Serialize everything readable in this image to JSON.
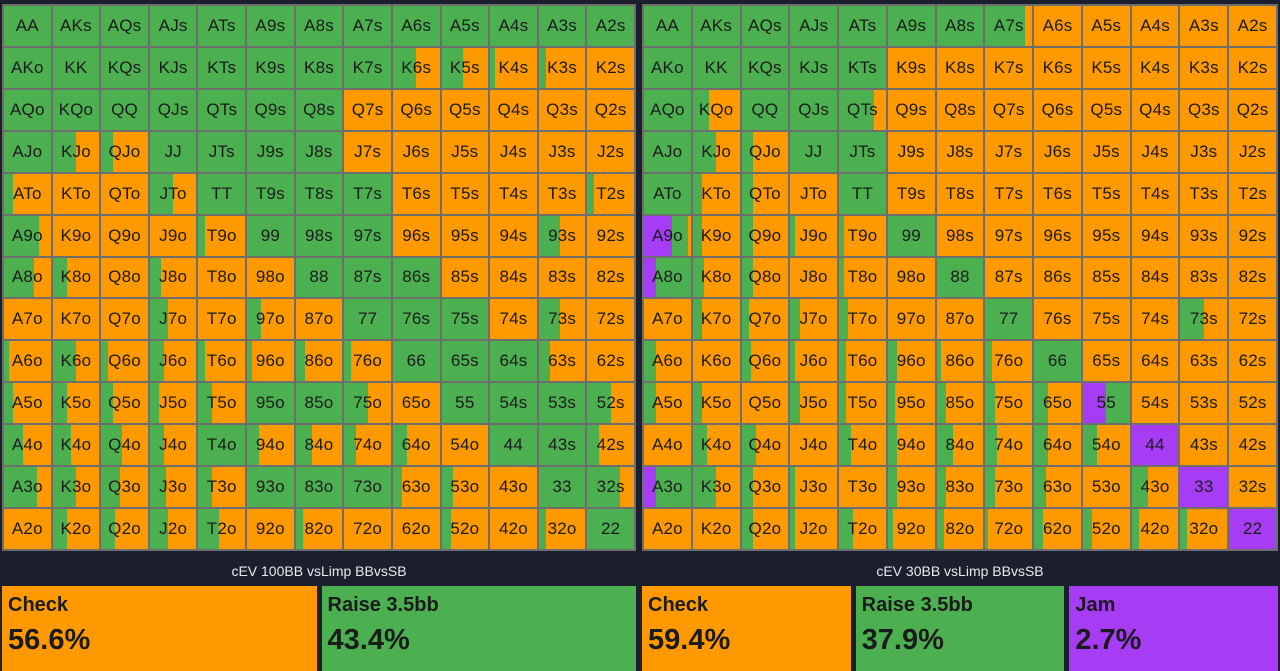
{
  "colors": {
    "check": "#ff9900",
    "raise": "#4caf50",
    "jam": "#a63cf4",
    "grid_line": "#6e6e6e",
    "background": "#1b1e2d"
  },
  "chart_data": [
    {
      "type": "heatmap",
      "title": "cEV 100BB vsLimp BBvsSB",
      "legend": [
        {
          "action": "Check",
          "label": "Check",
          "value": "56.6%",
          "color": "#ff9900"
        },
        {
          "action": "Raise",
          "label": "Raise 3.5bb",
          "value": "43.4%",
          "color": "#4caf50"
        }
      ],
      "action_order": [
        "raise",
        "check",
        "jam"
      ],
      "rows": [
        {
          "hands": [
            "AA",
            "AKs",
            "AQs",
            "AJs",
            "ATs",
            "A9s",
            "A8s",
            "A7s",
            "A6s",
            "A5s",
            "A4s",
            "A3s",
            "A2s"
          ],
          "raise": [
            1,
            1,
            1,
            1,
            1,
            1,
            1,
            1,
            1,
            1,
            1,
            1,
            1
          ]
        },
        {
          "hands": [
            "AKo",
            "KK",
            "KQs",
            "KJs",
            "KTs",
            "K9s",
            "K8s",
            "K7s",
            "K6s",
            "K5s",
            "K4s",
            "K3s",
            "K2s"
          ],
          "raise": [
            1,
            1,
            1,
            1,
            1,
            1,
            1,
            1,
            0.5,
            0.45,
            0.1,
            0.15,
            0
          ]
        },
        {
          "hands": [
            "AQo",
            "KQo",
            "QQ",
            "QJs",
            "QTs",
            "Q9s",
            "Q8s",
            "Q7s",
            "Q6s",
            "Q5s",
            "Q4s",
            "Q3s",
            "Q2s"
          ],
          "raise": [
            1,
            1,
            1,
            1,
            1,
            1,
            1,
            0,
            0,
            0,
            0,
            0,
            0
          ]
        },
        {
          "hands": [
            "AJo",
            "KJo",
            "QJo",
            "JJ",
            "JTs",
            "J9s",
            "J8s",
            "J7s",
            "J6s",
            "J5s",
            "J4s",
            "J3s",
            "J2s"
          ],
          "raise": [
            1,
            0.5,
            0.25,
            1,
            1,
            1,
            1,
            0,
            0,
            0,
            0,
            0,
            0
          ]
        },
        {
          "hands": [
            "ATo",
            "KTo",
            "QTo",
            "JTo",
            "TT",
            "T9s",
            "T8s",
            "T7s",
            "T6s",
            "T5s",
            "T4s",
            "T3s",
            "T2s"
          ],
          "raise": [
            0.2,
            0,
            0,
            0.5,
            1,
            1,
            1,
            1,
            0,
            0,
            0,
            0,
            0.15
          ]
        },
        {
          "hands": [
            "A9o",
            "K9o",
            "Q9o",
            "J9o",
            "T9o",
            "99",
            "98s",
            "97s",
            "96s",
            "95s",
            "94s",
            "93s",
            "92s"
          ],
          "raise": [
            0.75,
            0,
            0,
            0,
            0.15,
            1,
            1,
            1,
            0,
            0,
            0,
            0.45,
            0
          ]
        },
        {
          "hands": [
            "A8o",
            "K8o",
            "Q8o",
            "J8o",
            "T8o",
            "98o",
            "88",
            "87s",
            "86s",
            "85s",
            "84s",
            "83s",
            "82s"
          ],
          "raise": [
            0.65,
            0.3,
            0,
            0.25,
            0,
            0,
            1,
            1,
            1,
            0,
            0,
            0,
            0
          ]
        },
        {
          "hands": [
            "A7o",
            "K7o",
            "Q7o",
            "J7o",
            "T7o",
            "97o",
            "87o",
            "77",
            "76s",
            "75s",
            "74s",
            "73s",
            "72s"
          ],
          "raise": [
            0,
            0,
            0,
            0.4,
            0,
            0.3,
            0,
            1,
            1,
            1,
            0,
            0.45,
            0
          ]
        },
        {
          "hands": [
            "A6o",
            "K6o",
            "Q6o",
            "J6o",
            "T6o",
            "96o",
            "86o",
            "76o",
            "66",
            "65s",
            "64s",
            "63s",
            "62s"
          ],
          "raise": [
            0.1,
            0.5,
            0.15,
            0.3,
            0.15,
            0.1,
            0.2,
            0.15,
            1,
            1,
            1,
            0.25,
            0
          ]
        },
        {
          "hands": [
            "A5o",
            "K5o",
            "Q5o",
            "J5o",
            "T5o",
            "95o",
            "85o",
            "75o",
            "65o",
            "55",
            "54s",
            "53s",
            "52s"
          ],
          "raise": [
            0.2,
            0.3,
            0.25,
            0.2,
            0.3,
            1,
            1,
            0.5,
            0,
            1,
            1,
            1,
            0.5
          ]
        },
        {
          "hands": [
            "A4o",
            "K4o",
            "Q4o",
            "J4o",
            "T4o",
            "94o",
            "84o",
            "74o",
            "64o",
            "54o",
            "44",
            "43s",
            "42s"
          ],
          "raise": [
            0.4,
            0.4,
            0.45,
            0.3,
            1,
            0.25,
            0.35,
            0.25,
            0.3,
            0,
            1,
            1,
            0.25
          ]
        },
        {
          "hands": [
            "A3o",
            "K3o",
            "Q3o",
            "J3o",
            "T3o",
            "93o",
            "83o",
            "73o",
            "63o",
            "53o",
            "43o",
            "33",
            "32s"
          ],
          "raise": [
            0.7,
            0.5,
            0.4,
            0.35,
            0.3,
            1,
            1,
            1,
            0.2,
            0.25,
            0,
            1,
            0.7
          ]
        },
        {
          "hands": [
            "A2o",
            "K2o",
            "Q2o",
            "J2o",
            "T2o",
            "92o",
            "82o",
            "72o",
            "62o",
            "52o",
            "42o",
            "32o",
            "22"
          ],
          "raise": [
            0,
            0.3,
            0.3,
            0.4,
            0.45,
            0,
            0.15,
            0,
            0,
            0.2,
            0,
            0.15,
            1
          ]
        }
      ]
    },
    {
      "type": "heatmap",
      "title": "cEV 30BB vsLimp BBvsSB",
      "legend": [
        {
          "action": "Check",
          "label": "Check",
          "value": "59.4%",
          "color": "#ff9900"
        },
        {
          "action": "Raise",
          "label": "Raise 3.5bb",
          "value": "37.9%",
          "color": "#4caf50"
        },
        {
          "action": "Jam",
          "label": "Jam",
          "value": "2.7%",
          "color": "#a63cf4"
        }
      ],
      "action_order": [
        "jam",
        "raise",
        "check"
      ],
      "rows": [
        {
          "hands": [
            "AA",
            "AKs",
            "AQs",
            "AJs",
            "ATs",
            "A9s",
            "A8s",
            "A7s",
            "A6s",
            "A5s",
            "A4s",
            "A3s",
            "A2s"
          ],
          "raise": [
            1,
            1,
            1,
            1,
            1,
            1,
            1,
            0.85,
            0,
            0,
            0,
            0,
            0
          ]
        },
        {
          "hands": [
            "AKo",
            "KK",
            "KQs",
            "KJs",
            "KTs",
            "K9s",
            "K8s",
            "K7s",
            "K6s",
            "K5s",
            "K4s",
            "K3s",
            "K2s"
          ],
          "raise": [
            1,
            1,
            1,
            1,
            1,
            0,
            0,
            0,
            0,
            0,
            0,
            0,
            0
          ]
        },
        {
          "hands": [
            "AQo",
            "KQo",
            "QQ",
            "QJs",
            "QTs",
            "Q9s",
            "Q8s",
            "Q7s",
            "Q6s",
            "Q5s",
            "Q4s",
            "Q3s",
            "Q2s"
          ],
          "raise": [
            1,
            0.35,
            1,
            1,
            0.75,
            0,
            0,
            0,
            0,
            0,
            0,
            0,
            0
          ]
        },
        {
          "hands": [
            "AJo",
            "KJo",
            "QJo",
            "JJ",
            "JTs",
            "J9s",
            "J8s",
            "J7s",
            "J6s",
            "J5s",
            "J4s",
            "J3s",
            "J2s"
          ],
          "raise": [
            1,
            0.5,
            0.25,
            1,
            1,
            0,
            0,
            0,
            0,
            0,
            0,
            0,
            0
          ]
        },
        {
          "hands": [
            "ATo",
            "KTo",
            "QTo",
            "JTo",
            "TT",
            "T9s",
            "T8s",
            "T7s",
            "T6s",
            "T5s",
            "T4s",
            "T3s",
            "T2s"
          ],
          "raise": [
            1,
            0.2,
            0.25,
            0,
            1,
            0,
            0,
            0,
            0,
            0,
            0,
            0,
            0
          ]
        },
        {
          "hands": [
            "A9o",
            "K9o",
            "Q9o",
            "J9o",
            "T9o",
            "99",
            "98s",
            "97s",
            "96s",
            "95s",
            "94s",
            "93s",
            "92s"
          ],
          "raise": [
            0.35,
            0.2,
            0.25,
            0.1,
            0.1,
            1,
            0,
            0,
            0,
            0,
            0,
            0,
            0
          ],
          "jam": [
            0.6,
            0,
            0,
            0,
            0,
            0,
            0,
            0,
            0,
            0,
            0,
            0,
            0
          ]
        },
        {
          "hands": [
            "A8o",
            "K8o",
            "Q8o",
            "J8o",
            "T8o",
            "98o",
            "88",
            "87s",
            "86s",
            "85s",
            "84s",
            "83s",
            "82s"
          ],
          "raise": [
            0.75,
            0.25,
            0.25,
            0,
            0.1,
            0,
            1,
            0,
            0,
            0,
            0,
            0,
            0
          ],
          "jam": [
            0.25,
            0,
            0,
            0,
            0,
            0,
            0,
            0,
            0,
            0,
            0,
            0,
            0
          ]
        },
        {
          "hands": [
            "A7o",
            "K7o",
            "Q7o",
            "J7o",
            "T7o",
            "97o",
            "87o",
            "77",
            "76s",
            "75s",
            "74s",
            "73s",
            "72s"
          ],
          "raise": [
            0,
            0.2,
            0.15,
            0.2,
            0.2,
            0,
            0,
            1,
            0,
            0,
            0,
            0.5,
            0
          ]
        },
        {
          "hands": [
            "A6o",
            "K6o",
            "Q6o",
            "J6o",
            "T6o",
            "96o",
            "86o",
            "76o",
            "66",
            "65s",
            "64s",
            "63s",
            "62s"
          ],
          "raise": [
            0.25,
            0,
            0.2,
            0.1,
            0.15,
            0.2,
            0.1,
            0.15,
            1,
            0,
            0,
            0,
            0
          ]
        },
        {
          "hands": [
            "A5o",
            "K5o",
            "Q5o",
            "J5o",
            "T5o",
            "95o",
            "85o",
            "75o",
            "65o",
            "55",
            "54s",
            "53s",
            "52s"
          ],
          "raise": [
            0.25,
            0.2,
            0,
            0.2,
            0.15,
            0.15,
            0.2,
            0.2,
            0.3,
            0.5,
            0,
            0,
            0
          ],
          "jam": [
            0,
            0,
            0,
            0,
            0,
            0,
            0,
            0,
            0,
            0.5,
            0,
            0,
            0
          ]
        },
        {
          "hands": [
            "A4o",
            "K4o",
            "Q4o",
            "J4o",
            "T4o",
            "94o",
            "84o",
            "74o",
            "64o",
            "54o",
            "44",
            "43s",
            "42s"
          ],
          "raise": [
            0,
            0.3,
            0.3,
            0,
            0.25,
            0.2,
            0.35,
            0.25,
            0.3,
            0.3,
            0,
            0,
            0
          ],
          "jam": [
            0,
            0,
            0,
            0,
            0,
            0,
            0,
            0,
            0,
            0,
            1,
            0,
            0
          ]
        },
        {
          "hands": [
            "A3o",
            "K3o",
            "Q3o",
            "J3o",
            "T3o",
            "93o",
            "83o",
            "73o",
            "63o",
            "53o",
            "43o",
            "33",
            "32s"
          ],
          "raise": [
            0.75,
            0.5,
            0.25,
            0.1,
            0,
            0.2,
            0.2,
            0.2,
            0.25,
            0,
            0.35,
            0,
            0
          ],
          "jam": [
            0.25,
            0,
            0,
            0,
            0,
            0,
            0,
            0,
            0,
            0,
            0,
            1,
            0
          ]
        },
        {
          "hands": [
            "A2o",
            "K2o",
            "Q2o",
            "J2o",
            "T2o",
            "92o",
            "82o",
            "72o",
            "62o",
            "52o",
            "42o",
            "32o",
            "22"
          ],
          "raise": [
            0,
            0,
            0.25,
            0.1,
            0.3,
            0.1,
            0.15,
            0.05,
            0.2,
            0.2,
            0.15,
            0.15,
            0
          ],
          "jam": [
            0,
            0,
            0,
            0,
            0,
            0,
            0,
            0,
            0,
            0,
            0,
            0,
            1
          ]
        }
      ]
    }
  ]
}
